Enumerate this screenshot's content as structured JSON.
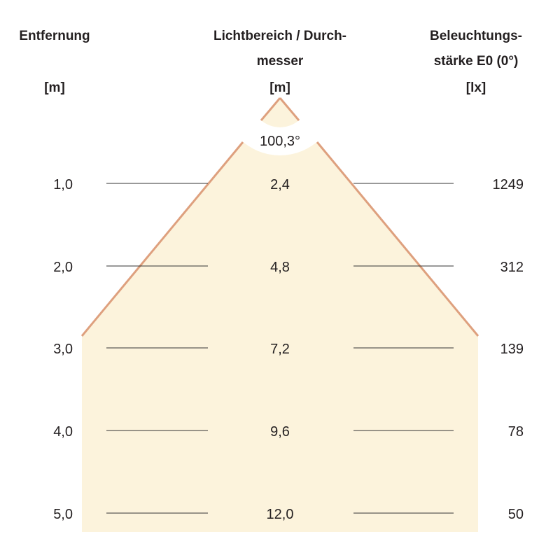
{
  "headers": {
    "distance": {
      "line1": "Entfernung",
      "unit": "[m]"
    },
    "diameter": {
      "line1": "Lichtbereich / Durch-",
      "line2": "messer",
      "unit": "[m]"
    },
    "illuminance": {
      "line1": "Beleuchtungs-",
      "line2": "stärke E0 (0°)",
      "unit": "[lx]"
    }
  },
  "beam_angle": "100,3°",
  "rows": [
    {
      "distance": "1,0",
      "diameter": "2,4",
      "lux": "1249"
    },
    {
      "distance": "2,0",
      "diameter": "4,8",
      "lux": "312"
    },
    {
      "distance": "3,0",
      "diameter": "7,2",
      "lux": "139"
    },
    {
      "distance": "4,0",
      "diameter": "9,6",
      "lux": "78"
    },
    {
      "distance": "5,0",
      "diameter": "12,0",
      "lux": "50"
    }
  ],
  "colors": {
    "cone_fill": "#fcf3dc",
    "cone_edge": "#dea07e",
    "rule": "#333333"
  }
}
